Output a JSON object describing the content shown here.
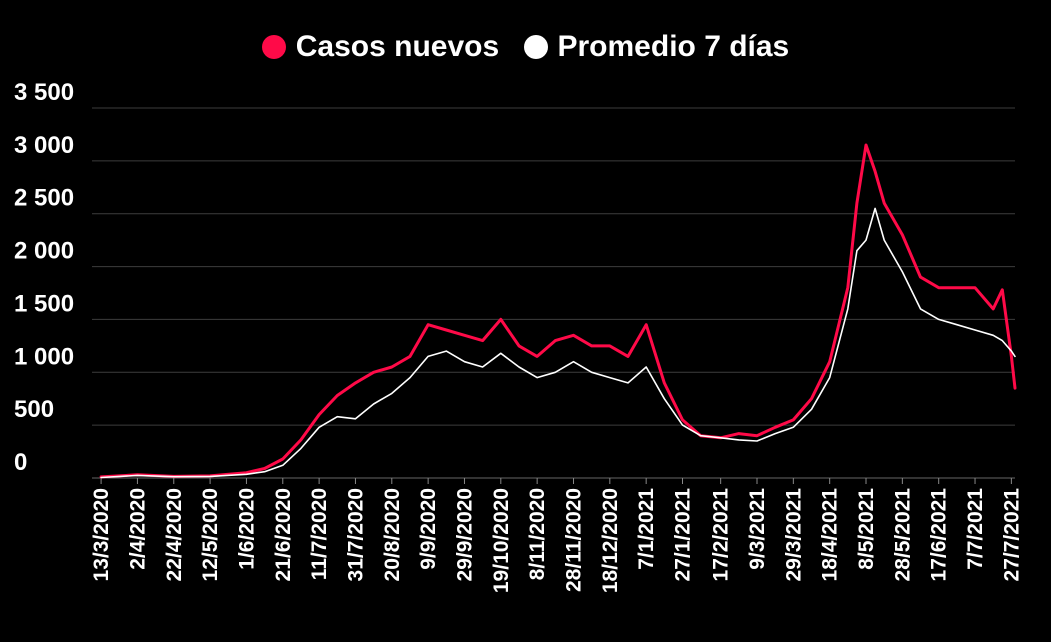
{
  "chart_data": {
    "type": "line",
    "title": "",
    "xlabel": "",
    "ylabel": "",
    "ylim": [
      0,
      3500
    ],
    "yticks": [
      0,
      500,
      1000,
      1500,
      2000,
      2500,
      3000,
      3500
    ],
    "ytick_labels": [
      "0",
      "500",
      "1 000",
      "1 500",
      "2 000",
      "2 500",
      "3 000",
      "3 500"
    ],
    "grid": true,
    "legend_position": "top-center",
    "x_range": [
      "8/3/2020",
      "29/7/2021"
    ],
    "x_tick_labels": [
      "13/3/2020",
      "2/4/2020",
      "22/4/2020",
      "12/5/2020",
      "1/6/2020",
      "21/6/2020",
      "11/7/2020",
      "31/7/2020",
      "20/8/2020",
      "9/9/2020",
      "29/9/2020",
      "19/10/2020",
      "8/11/2020",
      "28/11/2020",
      "18/12/2020",
      "7/1/2021",
      "27/1/2021",
      "17/2/2021",
      "9/3/2021",
      "29/3/2021",
      "18/4/2021",
      "8/5/2021",
      "28/5/2021",
      "17/6/2021",
      "7/7/2021",
      "27/7/2021"
    ],
    "series": [
      {
        "name": "Casos nuevos",
        "color": "#ff0a48",
        "x": [
          "13/3/2020",
          "2/4/2020",
          "22/4/2020",
          "12/5/2020",
          "1/6/2020",
          "11/6/2020",
          "21/6/2020",
          "1/7/2020",
          "11/7/2020",
          "21/7/2020",
          "31/7/2020",
          "10/8/2020",
          "20/8/2020",
          "30/8/2020",
          "9/9/2020",
          "19/9/2020",
          "29/9/2020",
          "9/10/2020",
          "19/10/2020",
          "29/10/2020",
          "8/11/2020",
          "18/11/2020",
          "28/11/2020",
          "8/12/2020",
          "18/12/2020",
          "28/12/2020",
          "7/1/2021",
          "17/1/2021",
          "27/1/2021",
          "6/2/2021",
          "17/2/2021",
          "27/2/2021",
          "9/3/2021",
          "19/3/2021",
          "29/3/2021",
          "8/4/2021",
          "18/4/2021",
          "28/4/2021",
          "3/5/2021",
          "8/5/2021",
          "13/5/2021",
          "18/5/2021",
          "28/5/2021",
          "7/6/2021",
          "17/6/2021",
          "27/6/2021",
          "7/7/2021",
          "17/7/2021",
          "22/7/2021",
          "27/7/2021",
          "29/7/2021"
        ],
        "y": [
          10,
          30,
          15,
          20,
          50,
          90,
          180,
          360,
          600,
          780,
          900,
          1000,
          1050,
          1150,
          1450,
          1400,
          1350,
          1300,
          1500,
          1250,
          1150,
          1300,
          1350,
          1250,
          1250,
          1150,
          1450,
          900,
          550,
          400,
          380,
          420,
          400,
          480,
          550,
          750,
          1100,
          1800,
          2600,
          3150,
          2900,
          2600,
          2300,
          1900,
          1800,
          1800,
          1800,
          1600,
          1780,
          1150,
          850
        ]
      },
      {
        "name": "Promedio 7 días",
        "color": "#ffffff",
        "x": [
          "13/3/2020",
          "2/4/2020",
          "22/4/2020",
          "12/5/2020",
          "1/6/2020",
          "11/6/2020",
          "21/6/2020",
          "1/7/2020",
          "11/7/2020",
          "21/7/2020",
          "31/7/2020",
          "10/8/2020",
          "20/8/2020",
          "30/8/2020",
          "9/9/2020",
          "19/9/2020",
          "29/9/2020",
          "9/10/2020",
          "19/10/2020",
          "29/10/2020",
          "8/11/2020",
          "18/11/2020",
          "28/11/2020",
          "8/12/2020",
          "18/12/2020",
          "28/12/2020",
          "7/1/2021",
          "17/1/2021",
          "27/1/2021",
          "6/2/2021",
          "17/2/2021",
          "27/2/2021",
          "9/3/2021",
          "19/3/2021",
          "29/3/2021",
          "8/4/2021",
          "18/4/2021",
          "28/4/2021",
          "3/5/2021",
          "8/5/2021",
          "13/5/2021",
          "18/5/2021",
          "28/5/2021",
          "7/6/2021",
          "17/6/2021",
          "27/6/2021",
          "7/7/2021",
          "17/7/2021",
          "22/7/2021",
          "27/7/2021",
          "29/7/2021"
        ],
        "y": [
          5,
          25,
          12,
          15,
          35,
          60,
          120,
          280,
          480,
          580,
          560,
          700,
          800,
          950,
          1150,
          1200,
          1100,
          1050,
          1180,
          1050,
          950,
          1000,
          1100,
          1000,
          950,
          900,
          1050,
          750,
          500,
          400,
          380,
          360,
          350,
          420,
          480,
          650,
          950,
          1600,
          2150,
          2250,
          2550,
          2250,
          1950,
          1600,
          1500,
          1450,
          1400,
          1350,
          1300,
          1200,
          1150
        ]
      }
    ]
  }
}
